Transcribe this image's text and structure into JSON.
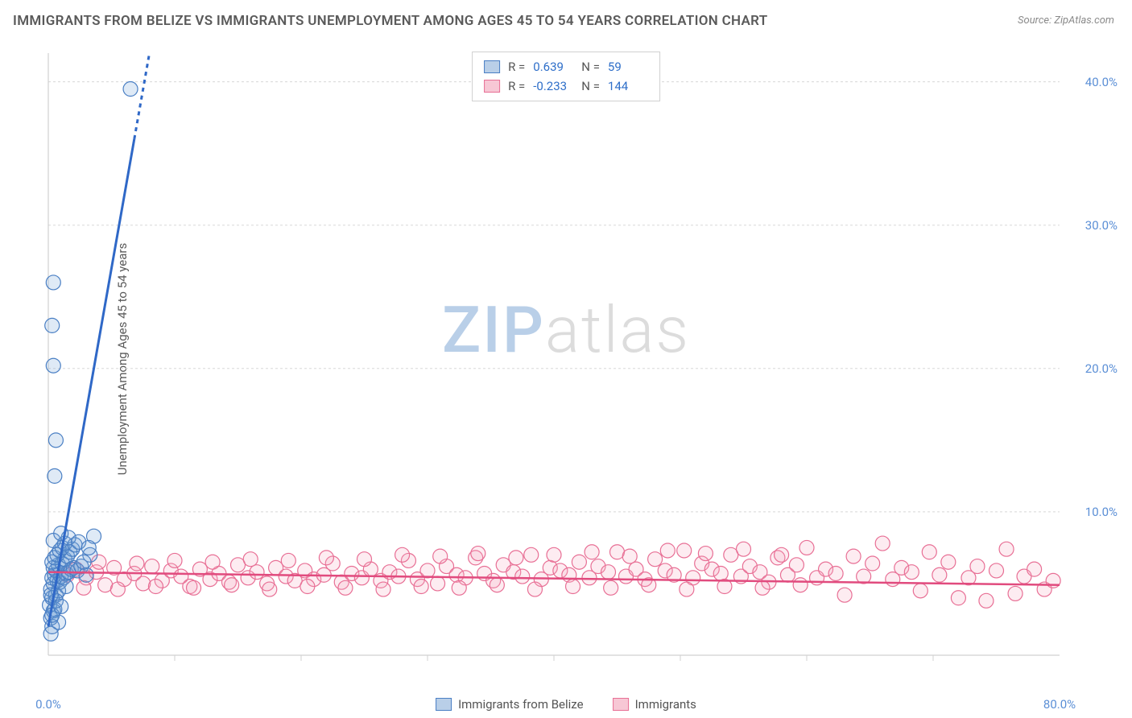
{
  "title": "IMMIGRANTS FROM BELIZE VS IMMIGRANTS UNEMPLOYMENT AMONG AGES 45 TO 54 YEARS CORRELATION CHART",
  "source": "Source: ZipAtlas.com",
  "ylabel": "Unemployment Among Ages 45 to 54 years",
  "watermark_a": "ZIP",
  "watermark_b": "atlas",
  "chart": {
    "type": "scatter",
    "background_color": "#ffffff",
    "grid_color": "#d8d8d8",
    "axis_color": "#d0d0d0",
    "xlim": [
      0,
      80
    ],
    "ylim": [
      0,
      42
    ],
    "xticks": [
      0,
      80
    ],
    "xtick_labels": [
      "0.0%",
      "80.0%"
    ],
    "xminor_step": 10,
    "yticks": [
      10,
      20,
      30,
      40
    ],
    "ytick_labels": [
      "10.0%",
      "20.0%",
      "30.0%",
      "40.0%"
    ],
    "tick_color": "#5b8fd6",
    "tick_fontsize": 15,
    "label_color": "#5a5a5a",
    "label_fontsize": 15,
    "title_color": "#5a5a5a",
    "title_fontsize": 17,
    "marker_radius": 9,
    "marker_stroke_width": 1.2,
    "marker_fill_opacity": 0.22,
    "series": [
      {
        "name": "Immigrants from Belize",
        "color": "#6f9fd8",
        "stroke": "#4a7fc4",
        "fit_line_color": "#2f68c7",
        "fit_line_width": 3,
        "fit_line": {
          "x1": 0.0,
          "y1": 2.0,
          "x2": 8.0,
          "y2": 42.0,
          "dash_after_x": 6.8
        },
        "R": "0.639",
        "N": "59",
        "points": [
          [
            0.2,
            1.5
          ],
          [
            0.3,
            2.0
          ],
          [
            0.2,
            2.6
          ],
          [
            0.4,
            3.1
          ],
          [
            0.1,
            3.5
          ],
          [
            0.5,
            3.2
          ],
          [
            0.3,
            4.0
          ],
          [
            0.6,
            4.2
          ],
          [
            0.2,
            4.6
          ],
          [
            0.8,
            4.5
          ],
          [
            0.4,
            5.0
          ],
          [
            0.7,
            5.2
          ],
          [
            0.3,
            5.4
          ],
          [
            0.9,
            5.1
          ],
          [
            0.5,
            5.6
          ],
          [
            1.0,
            5.5
          ],
          [
            0.6,
            5.9
          ],
          [
            1.2,
            5.4
          ],
          [
            0.4,
            6.1
          ],
          [
            1.4,
            5.7
          ],
          [
            0.8,
            6.3
          ],
          [
            1.6,
            5.8
          ],
          [
            0.3,
            6.5
          ],
          [
            1.1,
            6.4
          ],
          [
            1.8,
            6.0
          ],
          [
            0.5,
            6.8
          ],
          [
            1.3,
            6.7
          ],
          [
            2.0,
            6.1
          ],
          [
            0.7,
            7.0
          ],
          [
            1.5,
            6.9
          ],
          [
            2.3,
            5.9
          ],
          [
            0.9,
            7.3
          ],
          [
            1.7,
            7.2
          ],
          [
            2.6,
            6.2
          ],
          [
            1.1,
            7.5
          ],
          [
            1.9,
            7.4
          ],
          [
            3.0,
            5.6
          ],
          [
            1.3,
            7.8
          ],
          [
            2.1,
            7.7
          ],
          [
            0.4,
            8.0
          ],
          [
            1.6,
            8.2
          ],
          [
            2.4,
            7.9
          ],
          [
            3.3,
            7.0
          ],
          [
            1.0,
            8.5
          ],
          [
            3.6,
            8.3
          ],
          [
            0.6,
            3.8
          ],
          [
            0.2,
            4.2
          ],
          [
            1.4,
            4.8
          ],
          [
            0.8,
            2.3
          ],
          [
            0.3,
            2.8
          ],
          [
            1.0,
            3.4
          ],
          [
            0.5,
            12.5
          ],
          [
            0.6,
            15.0
          ],
          [
            0.4,
            20.2
          ],
          [
            0.3,
            23.0
          ],
          [
            0.4,
            26.0
          ],
          [
            6.5,
            39.5
          ],
          [
            2.8,
            6.5
          ],
          [
            3.2,
            7.5
          ]
        ]
      },
      {
        "name": "Immigrants",
        "color": "#f4a7bd",
        "stroke": "#e86f95",
        "fit_line_color": "#e14b7e",
        "fit_line_width": 2.5,
        "fit_line": {
          "x1": 0.0,
          "y1": 5.8,
          "x2": 80.0,
          "y2": 4.9
        },
        "R": "-0.233",
        "N": "144",
        "points": [
          [
            1.5,
            5.6
          ],
          [
            2.2,
            6.0
          ],
          [
            3.0,
            5.4
          ],
          [
            3.8,
            5.8
          ],
          [
            4.5,
            4.9
          ],
          [
            5.2,
            6.1
          ],
          [
            6.0,
            5.3
          ],
          [
            6.8,
            5.7
          ],
          [
            7.5,
            5.0
          ],
          [
            8.2,
            6.2
          ],
          [
            9.0,
            5.2
          ],
          [
            9.7,
            5.9
          ],
          [
            10.5,
            5.5
          ],
          [
            11.2,
            4.8
          ],
          [
            12.0,
            6.0
          ],
          [
            12.8,
            5.3
          ],
          [
            13.5,
            5.7
          ],
          [
            14.3,
            5.1
          ],
          [
            15.0,
            6.3
          ],
          [
            15.8,
            5.4
          ],
          [
            16.5,
            5.8
          ],
          [
            17.3,
            5.0
          ],
          [
            18.0,
            6.1
          ],
          [
            18.8,
            5.5
          ],
          [
            19.5,
            5.2
          ],
          [
            20.3,
            5.9
          ],
          [
            21.0,
            5.3
          ],
          [
            21.8,
            5.6
          ],
          [
            22.5,
            6.4
          ],
          [
            23.2,
            5.1
          ],
          [
            24.0,
            5.7
          ],
          [
            24.8,
            5.4
          ],
          [
            25.5,
            6.0
          ],
          [
            26.3,
            5.2
          ],
          [
            27.0,
            5.8
          ],
          [
            27.7,
            5.5
          ],
          [
            28.5,
            6.6
          ],
          [
            29.2,
            5.3
          ],
          [
            30.0,
            5.9
          ],
          [
            30.8,
            5.0
          ],
          [
            31.5,
            6.2
          ],
          [
            32.3,
            5.6
          ],
          [
            33.0,
            5.4
          ],
          [
            33.8,
            6.8
          ],
          [
            34.5,
            5.7
          ],
          [
            35.2,
            5.2
          ],
          [
            36.0,
            6.3
          ],
          [
            36.8,
            5.8
          ],
          [
            37.5,
            5.5
          ],
          [
            38.2,
            7.0
          ],
          [
            39.0,
            5.3
          ],
          [
            39.7,
            6.1
          ],
          [
            40.5,
            5.9
          ],
          [
            41.2,
            5.6
          ],
          [
            42.0,
            6.5
          ],
          [
            42.8,
            5.4
          ],
          [
            43.5,
            6.2
          ],
          [
            44.3,
            5.8
          ],
          [
            45.0,
            7.2
          ],
          [
            45.7,
            5.5
          ],
          [
            46.5,
            6.0
          ],
          [
            47.2,
            5.3
          ],
          [
            48.0,
            6.7
          ],
          [
            48.8,
            5.9
          ],
          [
            49.5,
            5.6
          ],
          [
            50.3,
            7.3
          ],
          [
            51.0,
            5.4
          ],
          [
            51.7,
            6.4
          ],
          [
            52.5,
            6.0
          ],
          [
            53.2,
            5.7
          ],
          [
            54.0,
            7.0
          ],
          [
            54.8,
            5.5
          ],
          [
            55.5,
            6.2
          ],
          [
            56.3,
            5.8
          ],
          [
            57.0,
            5.1
          ],
          [
            57.7,
            6.8
          ],
          [
            58.5,
            5.6
          ],
          [
            59.2,
            6.3
          ],
          [
            60.0,
            7.5
          ],
          [
            60.8,
            5.4
          ],
          [
            61.5,
            6.0
          ],
          [
            62.3,
            5.7
          ],
          [
            63.0,
            4.2
          ],
          [
            63.7,
            6.9
          ],
          [
            64.5,
            5.5
          ],
          [
            65.2,
            6.4
          ],
          [
            66.0,
            7.8
          ],
          [
            66.8,
            5.3
          ],
          [
            67.5,
            6.1
          ],
          [
            68.3,
            5.8
          ],
          [
            69.0,
            4.5
          ],
          [
            69.7,
            7.2
          ],
          [
            70.5,
            5.6
          ],
          [
            71.2,
            6.5
          ],
          [
            72.0,
            4.0
          ],
          [
            72.8,
            5.4
          ],
          [
            73.5,
            6.2
          ],
          [
            74.2,
            3.8
          ],
          [
            75.0,
            5.9
          ],
          [
            75.8,
            7.4
          ],
          [
            76.5,
            4.3
          ],
          [
            77.2,
            5.5
          ],
          [
            78.0,
            6.0
          ],
          [
            78.8,
            4.6
          ],
          [
            79.5,
            5.2
          ],
          [
            2.8,
            4.7
          ],
          [
            4.0,
            6.5
          ],
          [
            5.5,
            4.6
          ],
          [
            7.0,
            6.4
          ],
          [
            8.5,
            4.8
          ],
          [
            10.0,
            6.6
          ],
          [
            11.5,
            4.7
          ],
          [
            13.0,
            6.5
          ],
          [
            14.5,
            4.9
          ],
          [
            16.0,
            6.7
          ],
          [
            17.5,
            4.6
          ],
          [
            19.0,
            6.6
          ],
          [
            20.5,
            4.8
          ],
          [
            22.0,
            6.8
          ],
          [
            23.5,
            4.7
          ],
          [
            25.0,
            6.7
          ],
          [
            26.5,
            4.6
          ],
          [
            28.0,
            7.0
          ],
          [
            29.5,
            4.8
          ],
          [
            31.0,
            6.9
          ],
          [
            32.5,
            4.7
          ],
          [
            34.0,
            7.1
          ],
          [
            35.5,
            4.9
          ],
          [
            37.0,
            6.8
          ],
          [
            38.5,
            4.6
          ],
          [
            40.0,
            7.0
          ],
          [
            41.5,
            4.8
          ],
          [
            43.0,
            7.2
          ],
          [
            44.5,
            4.7
          ],
          [
            46.0,
            6.9
          ],
          [
            47.5,
            4.9
          ],
          [
            49.0,
            7.3
          ],
          [
            50.5,
            4.6
          ],
          [
            52.0,
            7.1
          ],
          [
            53.5,
            4.8
          ],
          [
            55.0,
            7.4
          ],
          [
            56.5,
            4.7
          ],
          [
            58.0,
            7.0
          ],
          [
            59.5,
            4.9
          ]
        ]
      }
    ]
  },
  "legend_top": {
    "r_label": "R =",
    "n_label": "N ="
  },
  "legend_bottom": [
    {
      "label": "Immigrants from Belize",
      "fill": "#b9cfe8",
      "stroke": "#4a7fc4"
    },
    {
      "label": "Immigrants",
      "fill": "#f7c7d5",
      "stroke": "#e86f95"
    }
  ]
}
